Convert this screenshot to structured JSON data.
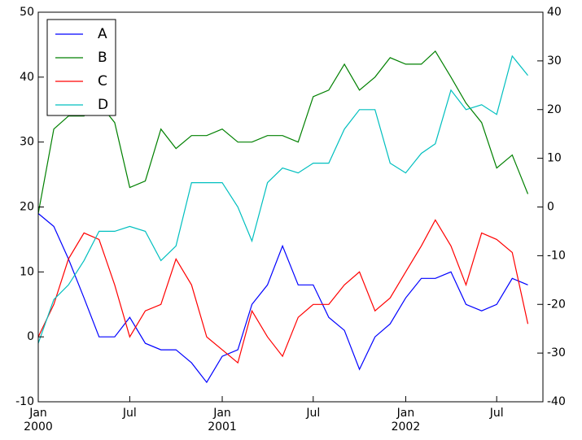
{
  "chart_data": {
    "type": "line",
    "x": [
      "2000-01",
      "2000-02",
      "2000-03",
      "2000-04",
      "2000-05",
      "2000-06",
      "2000-07",
      "2000-08",
      "2000-09",
      "2000-10",
      "2000-11",
      "2000-12",
      "2001-01",
      "2001-02",
      "2001-03",
      "2001-04",
      "2001-05",
      "2001-06",
      "2001-07",
      "2001-08",
      "2001-09",
      "2001-10",
      "2001-11",
      "2001-12",
      "2002-01",
      "2002-02",
      "2002-03",
      "2002-04",
      "2002-05",
      "2002-06",
      "2002-07",
      "2002-08",
      "2002-09"
    ],
    "xlim": [
      "2000-01",
      "2002-10"
    ],
    "xticks": [
      {
        "value": "2000-01",
        "label": "Jan",
        "year": "2000"
      },
      {
        "value": "2000-07",
        "label": "Jul"
      },
      {
        "value": "2001-01",
        "label": "Jan",
        "year": "2001"
      },
      {
        "value": "2001-07",
        "label": "Jul"
      },
      {
        "value": "2002-01",
        "label": "Jan",
        "year": "2002"
      },
      {
        "value": "2002-07",
        "label": "Jul"
      }
    ],
    "ylim": [
      -10,
      50
    ],
    "yticks": [
      -10,
      0,
      10,
      20,
      30,
      40,
      50
    ],
    "y2lim": [
      -40,
      40
    ],
    "y2ticks": [
      -40,
      -30,
      -20,
      -10,
      0,
      10,
      20,
      30,
      40
    ],
    "legend": "upper left",
    "series": [
      {
        "name": "A",
        "color": "#0000ff",
        "values": [
          19,
          17,
          12,
          6,
          0,
          0,
          3,
          -1,
          -2,
          -2,
          -4,
          -7,
          -3,
          -2,
          5,
          8,
          14,
          8,
          8,
          3,
          1,
          -5,
          0,
          2,
          6,
          9,
          9,
          10,
          5,
          4,
          5,
          9,
          8
        ]
      },
      {
        "name": "B",
        "color": "#008000",
        "values": [
          19,
          32,
          34,
          34,
          36,
          33,
          23,
          24,
          32,
          29,
          31,
          31,
          32,
          30,
          30,
          31,
          31,
          30,
          37,
          38,
          42,
          38,
          40,
          43,
          42,
          42,
          44,
          40,
          36,
          33,
          26,
          28,
          22
        ]
      },
      {
        "name": "C",
        "color": "#ff0000",
        "values": [
          0,
          5,
          12,
          16,
          15,
          8,
          0,
          4,
          5,
          12,
          8,
          0,
          -2,
          -4,
          4,
          0,
          -3,
          3,
          5,
          5,
          8,
          10,
          4,
          6,
          10,
          14,
          18,
          14,
          8,
          16,
          15,
          13,
          2
        ]
      },
      {
        "name": "D",
        "color": "#00bfbf",
        "axis": "y2",
        "values": [
          -28,
          -19,
          -16,
          -11,
          -5,
          -5,
          -4,
          -5,
          -11,
          -8,
          5,
          5,
          5,
          0,
          -7,
          5,
          8,
          7,
          9,
          9,
          16,
          20,
          20,
          9,
          7,
          11,
          13,
          24,
          20,
          21,
          19,
          31,
          27
        ]
      }
    ]
  }
}
